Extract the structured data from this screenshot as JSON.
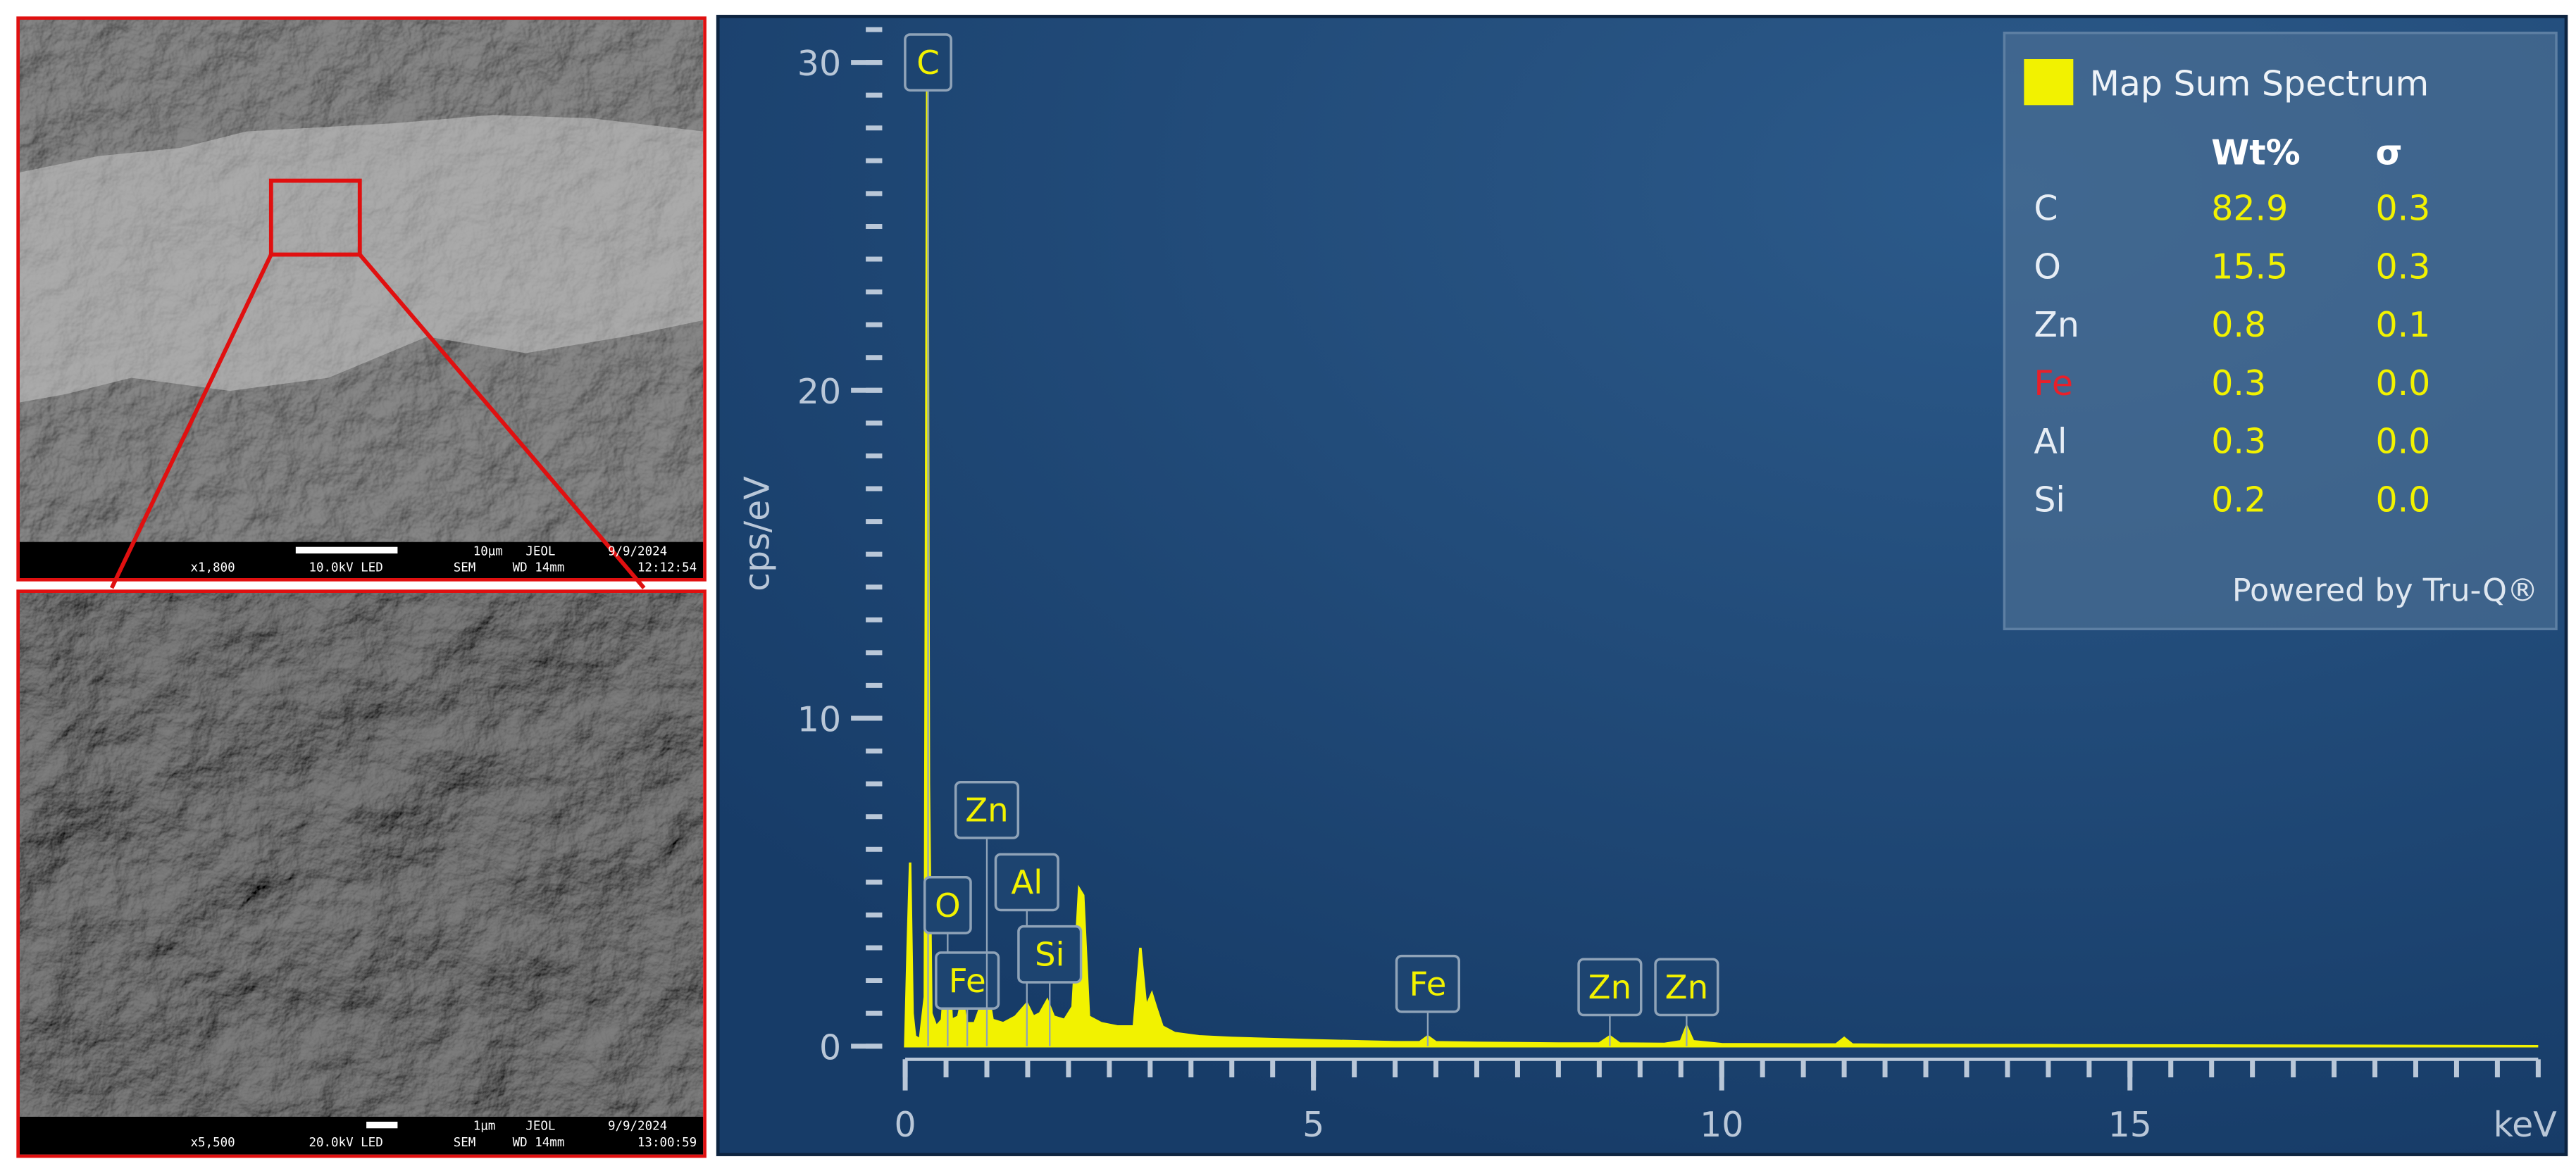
{
  "images": [
    {
      "magnification": "x1,800",
      "voltage": "10.0kV LED",
      "mode": "SEM",
      "wd": "WD 14mm",
      "scale": "10µm",
      "brand": "JEOL",
      "date": "9/9/2024",
      "time": "12:12:54"
    },
    {
      "magnification": "x5,500",
      "voltage": "20.0kV LED",
      "mode": "SEM",
      "wd": "WD 14mm",
      "scale": "1µm",
      "brand": "JEOL",
      "date": "9/9/2024",
      "time": "13:00:59"
    }
  ],
  "chart_data": {
    "type": "area",
    "y_label": "cps/eV",
    "x_label": "keV",
    "color": "#f2f200",
    "x": [
      0,
      0.03,
      0.06,
      0.09,
      0.12,
      0.18,
      0.24,
      0.27,
      0.29,
      0.32,
      0.38,
      0.45,
      0.5,
      0.53,
      0.57,
      0.65,
      0.7,
      0.75,
      0.85,
      0.95,
      1.01,
      1.07,
      1.2,
      1.35,
      1.49,
      1.57,
      1.65,
      1.74,
      1.82,
      1.95,
      2.05,
      2.13,
      2.18,
      2.25,
      2.4,
      2.6,
      2.8,
      2.88,
      2.95,
      3.02,
      3.07,
      3.15,
      3.3,
      3.6,
      4,
      5,
      6,
      6.3,
      6.4,
      6.5,
      7,
      8,
      8.5,
      8.63,
      8.75,
      9.3,
      9.5,
      9.57,
      9.65,
      10,
      11,
      11.4,
      11.5,
      11.6,
      12,
      14,
      16,
      18,
      20
    ],
    "values": [
      0,
      3,
      5.6,
      1,
      0.3,
      0.2,
      1.5,
      30.5,
      8,
      1,
      0.6,
      0.8,
      2.7,
      2.8,
      0.8,
      0.9,
      1.5,
      0.7,
      0.7,
      1.4,
      1.7,
      0.8,
      0.7,
      0.9,
      1.3,
      0.9,
      1.0,
      1.4,
      0.9,
      0.8,
      1.2,
      4.8,
      4.6,
      0.9,
      0.7,
      0.6,
      0.6,
      3.0,
      1.2,
      1.6,
      1.2,
      0.6,
      0.4,
      0.3,
      0.25,
      0.18,
      0.12,
      0.12,
      0.3,
      0.12,
      0.1,
      0.08,
      0.08,
      0.3,
      0.08,
      0.07,
      0.15,
      0.6,
      0.15,
      0.06,
      0.05,
      0.05,
      0.25,
      0.05,
      0.04,
      0.03,
      0.02,
      0.01,
      0
    ],
    "xlim": [
      0,
      20
    ],
    "ylim": [
      0,
      31
    ],
    "xticks": [
      0,
      5,
      10,
      15
    ],
    "yticks": [
      0,
      10,
      20,
      30
    ],
    "xminor_step": 0.5,
    "yminor_step": 1,
    "peak_labels": [
      {
        "label": "C",
        "x": 0.28,
        "y": 30
      },
      {
        "label": "O",
        "x": 0.52,
        "y": 4.3
      },
      {
        "label": "Fe",
        "x": 0.76,
        "y": 2.0
      },
      {
        "label": "Zn",
        "x": 1.0,
        "y": 7.2
      },
      {
        "label": "Al",
        "x": 1.49,
        "y": 5.0
      },
      {
        "label": "Si",
        "x": 1.77,
        "y": 2.8
      },
      {
        "label": "Fe",
        "x": 6.4,
        "y": 1.9
      },
      {
        "label": "Zn",
        "x": 8.63,
        "y": 1.8
      },
      {
        "label": "Zn",
        "x": 9.57,
        "y": 1.8
      }
    ],
    "legend": {
      "title": "Map Sum Spectrum",
      "headers": [
        "Wt%",
        "σ"
      ],
      "rows": [
        {
          "element": "C",
          "wt": "82.9",
          "sigma": "0.3",
          "color": "#e6edf5"
        },
        {
          "element": "O",
          "wt": "15.5",
          "sigma": "0.3",
          "color": "#e6edf5"
        },
        {
          "element": "Zn",
          "wt": "0.8",
          "sigma": "0.1",
          "color": "#e6edf5"
        },
        {
          "element": "Fe",
          "wt": "0.3",
          "sigma": "0.0",
          "color": "#e8202a"
        },
        {
          "element": "Al",
          "wt": "0.3",
          "sigma": "0.0",
          "color": "#e6edf5"
        },
        {
          "element": "Si",
          "wt": "0.2",
          "sigma": "0.0",
          "color": "#e6edf5"
        }
      ],
      "footer": "Powered by Tru-Q®"
    }
  }
}
